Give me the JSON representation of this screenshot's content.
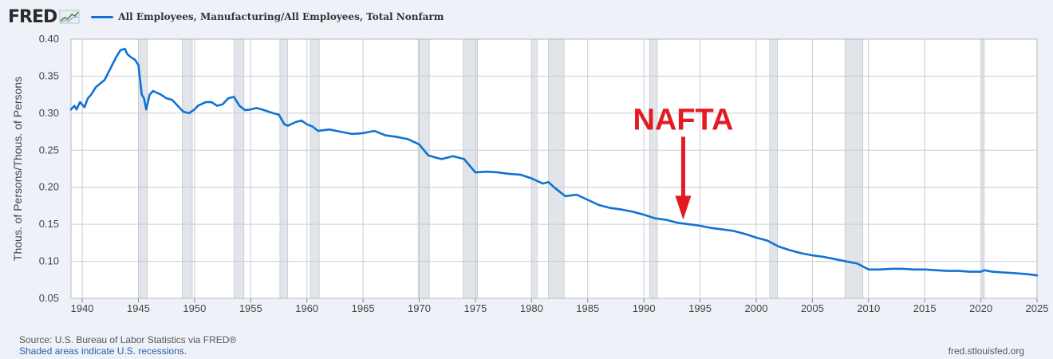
{
  "header": {
    "logo_text": "FRED",
    "logo_icon": "chart-line-icon"
  },
  "colors": {
    "series": "#0f72d4",
    "recession": "#e1e5ea",
    "annotation": "#e21b23",
    "grid": "#c9ccd1",
    "plot_bg": "#ffffff"
  },
  "chart_data": {
    "type": "line",
    "title": "All Employees, Manufacturing/All Employees, Total Nonfarm",
    "xlabel": "",
    "ylabel": "Thous. of Persons/Thous. of Persons",
    "xlim": [
      1939,
      2025
    ],
    "ylim": [
      0.05,
      0.4
    ],
    "x_ticks": [
      1940,
      1945,
      1950,
      1955,
      1960,
      1965,
      1970,
      1975,
      1980,
      1985,
      1990,
      1995,
      2000,
      2005,
      2010,
      2015,
      2020,
      2025
    ],
    "y_ticks": [
      "0.05",
      "0.10",
      "0.15",
      "0.20",
      "0.25",
      "0.30",
      "0.35",
      "0.40"
    ],
    "grid": true,
    "recessions": [
      [
        1945.1,
        1945.8
      ],
      [
        1948.9,
        1949.8
      ],
      [
        1953.5,
        1954.4
      ],
      [
        1957.6,
        1958.3
      ],
      [
        1960.3,
        1961.1
      ],
      [
        1969.9,
        1970.9
      ],
      [
        1973.9,
        1975.2
      ],
      [
        1980.0,
        1980.5
      ],
      [
        1981.5,
        1982.9
      ],
      [
        1990.5,
        1991.2
      ],
      [
        2001.2,
        2001.9
      ],
      [
        2007.9,
        2009.5
      ],
      [
        2020.1,
        2020.3
      ]
    ],
    "series": [
      {
        "name": "All Employees, Manufacturing/All Employees, Total Nonfarm",
        "x": [
          1939.0,
          1939.3,
          1939.5,
          1939.8,
          1940.2,
          1940.5,
          1940.8,
          1941.2,
          1941.6,
          1942.0,
          1942.5,
          1943.0,
          1943.4,
          1943.8,
          1944.0,
          1944.3,
          1944.7,
          1945.0,
          1945.3,
          1945.5,
          1945.7,
          1946.0,
          1946.3,
          1946.6,
          1947.0,
          1947.5,
          1948.0,
          1948.5,
          1949.0,
          1949.5,
          1950.0,
          1950.3,
          1951.0,
          1951.5,
          1952.0,
          1952.5,
          1953.0,
          1953.5,
          1954.0,
          1954.5,
          1955.0,
          1955.5,
          1956.0,
          1957.0,
          1957.5,
          1958.0,
          1958.3,
          1959.0,
          1959.5,
          1960.0,
          1960.5,
          1961.0,
          1962.0,
          1963.0,
          1964.0,
          1965.0,
          1966.0,
          1967.0,
          1968.0,
          1969.0,
          1970.0,
          1970.8,
          1971.5,
          1972.0,
          1973.0,
          1974.0,
          1975.0,
          1976.0,
          1977.0,
          1978.0,
          1979.0,
          1980.0,
          1981.0,
          1981.5,
          1982.0,
          1983.0,
          1984.0,
          1985.0,
          1986.0,
          1987.0,
          1988.0,
          1989.0,
          1990.0,
          1991.0,
          1992.0,
          1993.0,
          1994.0,
          1995.0,
          1996.0,
          1997.0,
          1998.0,
          1999.0,
          2000.0,
          2001.0,
          2002.0,
          2003.0,
          2004.0,
          2005.0,
          2006.0,
          2007.0,
          2008.0,
          2009.0,
          2010.0,
          2011.0,
          2012.0,
          2013.0,
          2014.0,
          2015.0,
          2016.0,
          2017.0,
          2018.0,
          2019.0,
          2020.0,
          2020.3,
          2021.0,
          2022.0,
          2023.0,
          2024.0,
          2025.0
        ],
        "values": [
          0.305,
          0.31,
          0.305,
          0.315,
          0.308,
          0.32,
          0.325,
          0.335,
          0.34,
          0.345,
          0.36,
          0.375,
          0.385,
          0.387,
          0.38,
          0.376,
          0.372,
          0.365,
          0.325,
          0.32,
          0.305,
          0.325,
          0.33,
          0.328,
          0.325,
          0.32,
          0.318,
          0.31,
          0.302,
          0.3,
          0.305,
          0.31,
          0.315,
          0.315,
          0.31,
          0.312,
          0.32,
          0.322,
          0.31,
          0.304,
          0.305,
          0.307,
          0.305,
          0.3,
          0.298,
          0.285,
          0.283,
          0.288,
          0.29,
          0.285,
          0.282,
          0.276,
          0.278,
          0.275,
          0.272,
          0.273,
          0.276,
          0.27,
          0.268,
          0.265,
          0.258,
          0.243,
          0.24,
          0.238,
          0.242,
          0.238,
          0.22,
          0.221,
          0.22,
          0.218,
          0.217,
          0.212,
          0.205,
          0.207,
          0.2,
          0.188,
          0.19,
          0.183,
          0.176,
          0.172,
          0.17,
          0.167,
          0.163,
          0.158,
          0.156,
          0.152,
          0.15,
          0.148,
          0.145,
          0.143,
          0.141,
          0.137,
          0.132,
          0.128,
          0.12,
          0.115,
          0.111,
          0.108,
          0.106,
          0.103,
          0.1,
          0.097,
          0.089,
          0.089,
          0.09,
          0.09,
          0.089,
          0.089,
          0.088,
          0.087,
          0.087,
          0.086,
          0.086,
          0.088,
          0.086,
          0.085,
          0.084,
          0.083,
          0.081
        ]
      }
    ],
    "annotations": [
      {
        "text": "NAFTA",
        "x": 1993.5,
        "y": 0.153,
        "color": "#e21b23"
      }
    ]
  },
  "footer": {
    "source": "Source: U.S. Bureau of Labor Statistics via FRED®",
    "recession_note": "Shaded areas indicate U.S. recessions.",
    "site": "fred.stlouisfed.org"
  }
}
